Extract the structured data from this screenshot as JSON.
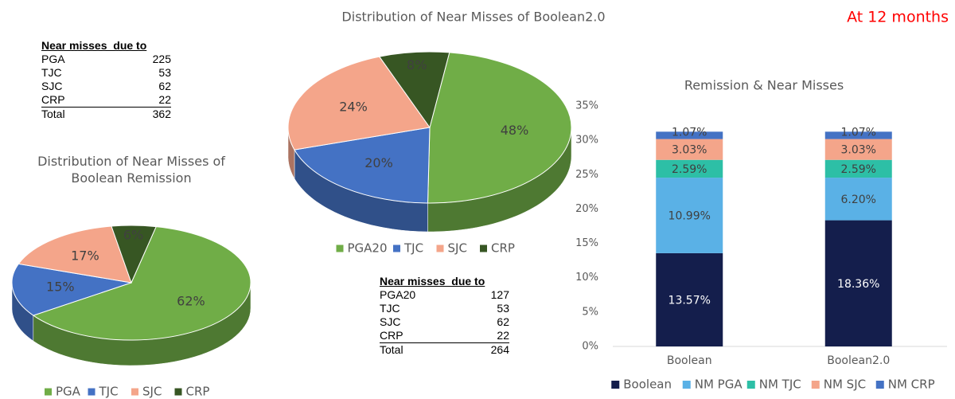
{
  "note": "At 12 months",
  "chart_data": [
    {
      "type": "pie",
      "title": "Distribution of Near Misses of Boolean Remission",
      "categories": [
        "PGA",
        "TJC",
        "SJC",
        "CRP"
      ],
      "values": [
        62,
        15,
        17,
        6
      ],
      "value_labels": [
        "62%",
        "15%",
        "17%",
        "6%"
      ],
      "colors": [
        "#70ad47",
        "#4472c4",
        "#f4a58a",
        "#375623"
      ]
    },
    {
      "type": "pie",
      "title": "Distribution of Near Misses of Boolean2.0",
      "categories": [
        "PGA20",
        "TJC",
        "SJC",
        "CRP"
      ],
      "values": [
        48,
        20,
        24,
        8
      ],
      "value_labels": [
        "48%",
        "20%",
        "24%",
        "8%"
      ],
      "colors": [
        "#70ad47",
        "#4472c4",
        "#f4a58a",
        "#375623"
      ]
    },
    {
      "type": "stacked_bar",
      "title": "Remission & Near Misses",
      "categories": [
        "Boolean",
        "Boolean2.0"
      ],
      "series": [
        {
          "name": "Boolean",
          "color": "#141e4c",
          "values": [
            13.57,
            18.36
          ],
          "value_labels": [
            "13.57%",
            "18.36%"
          ]
        },
        {
          "name": "NM PGA",
          "color": "#5ab1e6",
          "values": [
            10.99,
            6.2
          ],
          "value_labels": [
            "10.99%",
            "6.20%"
          ]
        },
        {
          "name": "NM TJC",
          "color": "#2dbfa6",
          "values": [
            2.59,
            2.59
          ],
          "value_labels": [
            "2.59%",
            "2.59%"
          ]
        },
        {
          "name": "NM SJC",
          "color": "#f4a58a",
          "values": [
            3.03,
            3.03
          ],
          "value_labels": [
            "3.03%",
            "3.03%"
          ]
        },
        {
          "name": "NM CRP",
          "color": "#4472c4",
          "values": [
            1.07,
            1.07
          ],
          "value_labels": [
            "1.07%",
            "1.07%"
          ]
        }
      ],
      "ylim": [
        0,
        35
      ],
      "yticks": [
        {
          "value": 0,
          "label": "0%"
        },
        {
          "value": 5,
          "label": "5%"
        },
        {
          "value": 10,
          "label": "10%"
        },
        {
          "value": 15,
          "label": "15%"
        },
        {
          "value": 20,
          "label": "20%"
        },
        {
          "value": 25,
          "label": "25%"
        },
        {
          "value": 30,
          "label": "30%"
        },
        {
          "value": 35,
          "label": "35%"
        }
      ]
    }
  ],
  "tables": [
    {
      "header": "Near misses  due to",
      "rows": [
        [
          "PGA",
          225
        ],
        [
          "TJC",
          53
        ],
        [
          "SJC",
          62
        ],
        [
          "CRP",
          22
        ],
        [
          "Total",
          362
        ]
      ]
    },
    {
      "header": "Near misses  due to",
      "rows": [
        [
          "PGA20",
          127
        ],
        [
          "TJC",
          53
        ],
        [
          "SJC",
          62
        ],
        [
          "CRP",
          22
        ],
        [
          "Total",
          264
        ]
      ]
    }
  ]
}
